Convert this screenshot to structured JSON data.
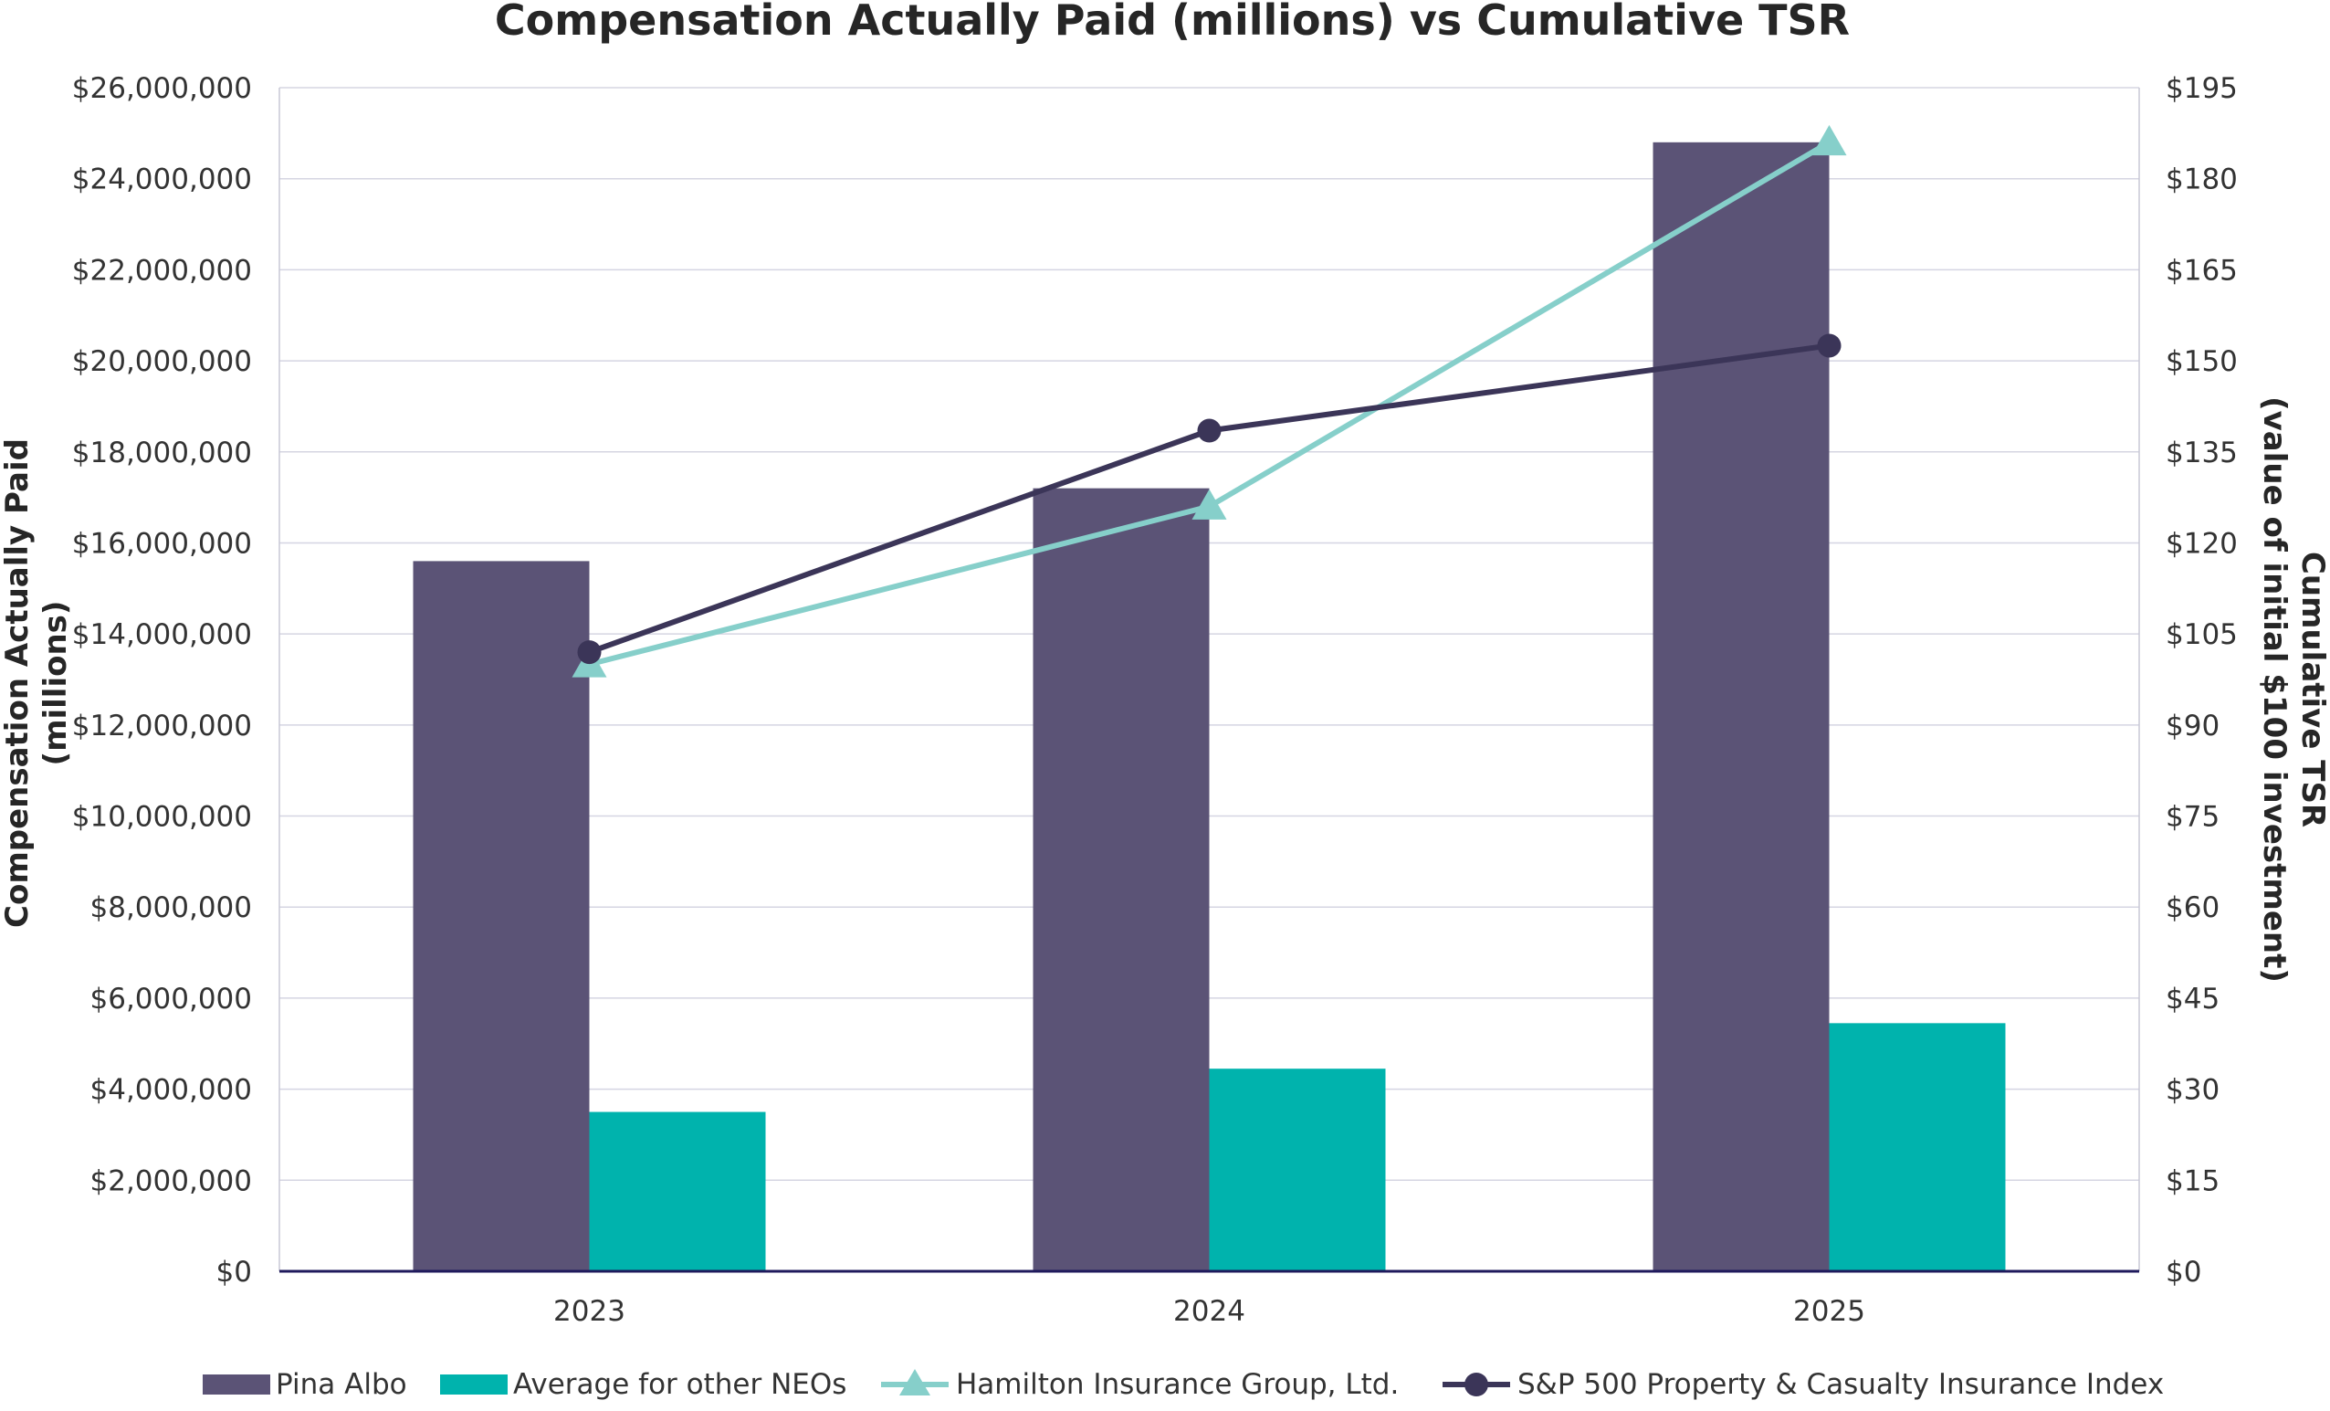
{
  "chart_data": {
    "type": "bar",
    "title": "Compensation Actually Paid (millions) vs Cumulative TSR",
    "categories": [
      "2023",
      "2024",
      "2025"
    ],
    "ylabel": "Compensation Actually Paid (millions)",
    "y2label_line1": "Cumulative TSR",
    "y2label_line2": "(value of initial $100 investment)",
    "ylim": [
      0,
      26000000
    ],
    "y2lim": [
      0,
      195
    ],
    "y_ticks": [
      "$0",
      "$2,000,000",
      "$4,000,000",
      "$6,000,000",
      "$8,000,000",
      "$10,000,000",
      "$12,000,000",
      "$14,000,000",
      "$16,000,000",
      "$18,000,000",
      "$20,000,000",
      "$22,000,000",
      "$24,000,000",
      "$26,000,000"
    ],
    "y2_ticks": [
      "$0",
      "$15",
      "$30",
      "$45",
      "$60",
      "$75",
      "$90",
      "$105",
      "$120",
      "$135",
      "$150",
      "$165",
      "$180",
      "$195"
    ],
    "grid": true,
    "legend_position": "bottom",
    "bar_series": [
      {
        "name": "Pina Albo",
        "color": "#5b5376",
        "values": [
          15600000,
          17200000,
          24800000
        ]
      },
      {
        "name": "Average for other NEOs",
        "color": "#00b3ad",
        "values": [
          3500000,
          4450000,
          5450000
        ]
      }
    ],
    "line_series": [
      {
        "name": "Hamilton Insurance Group, Ltd.",
        "color": "#86cfca",
        "marker": "triangle",
        "values": [
          100,
          126,
          186
        ]
      },
      {
        "name": "S&P 500 Property & Casualty Insurance Index",
        "color": "#3b3558",
        "marker": "circle",
        "values": [
          102,
          138.5,
          152.5
        ]
      }
    ]
  }
}
